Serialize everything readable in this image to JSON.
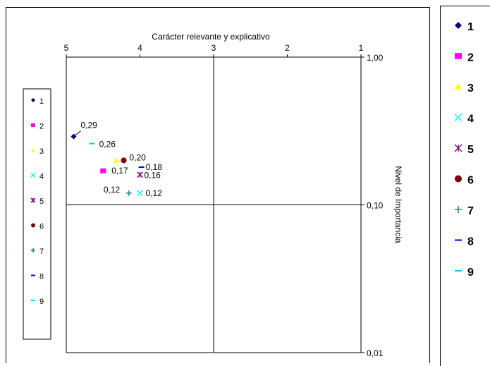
{
  "chart_data": {
    "type": "scatter",
    "title": "",
    "xlabel": "Carácter relevante y explicativo",
    "ylabel": "Nivel de Importancia",
    "xlim": [
      5,
      1
    ],
    "x_reversed": true,
    "x_ticks": [
      "5",
      "4",
      "3",
      "2",
      "1"
    ],
    "ylim": [
      0.01,
      1.0
    ],
    "y_scale": "log",
    "y_ticks": [
      "1,00",
      "0,10",
      "0,01"
    ],
    "quadrant_lines": {
      "x": 3,
      "y": 0.1
    },
    "grid": false,
    "series": [
      {
        "name": "1",
        "marker": "diamond",
        "color": "#000080",
        "x": 4.9,
        "y": 0.29,
        "label": "0,29"
      },
      {
        "name": "2",
        "marker": "square",
        "color": "#FF00FF",
        "x": 4.5,
        "y": 0.17,
        "label": "0,17"
      },
      {
        "name": "3",
        "marker": "triangle",
        "color": "#FFFF00",
        "x": 4.32,
        "y": 0.2,
        "label": ""
      },
      {
        "name": "4",
        "marker": "x",
        "color": "#00FFFF",
        "x": 4.0,
        "y": 0.12,
        "label": "0,12"
      },
      {
        "name": "5",
        "marker": "star",
        "color": "#800080",
        "x": 4.0,
        "y": 0.16,
        "label": "0,16"
      },
      {
        "name": "6",
        "marker": "circle",
        "color": "#800000",
        "x": 4.22,
        "y": 0.2,
        "label": "0,20"
      },
      {
        "name": "7",
        "marker": "plus",
        "color": "#008080",
        "x": 4.15,
        "y": 0.12,
        "label": "0,12"
      },
      {
        "name": "8",
        "marker": "dash",
        "color": "#0000FF",
        "x": 3.98,
        "y": 0.18,
        "label": "0,18"
      },
      {
        "name": "9",
        "marker": "dash",
        "color": "#00CCFF",
        "x": 4.65,
        "y": 0.26,
        "label": "0,26"
      }
    ],
    "legend_placement": "left"
  },
  "side_legend": {
    "placement": "right"
  }
}
